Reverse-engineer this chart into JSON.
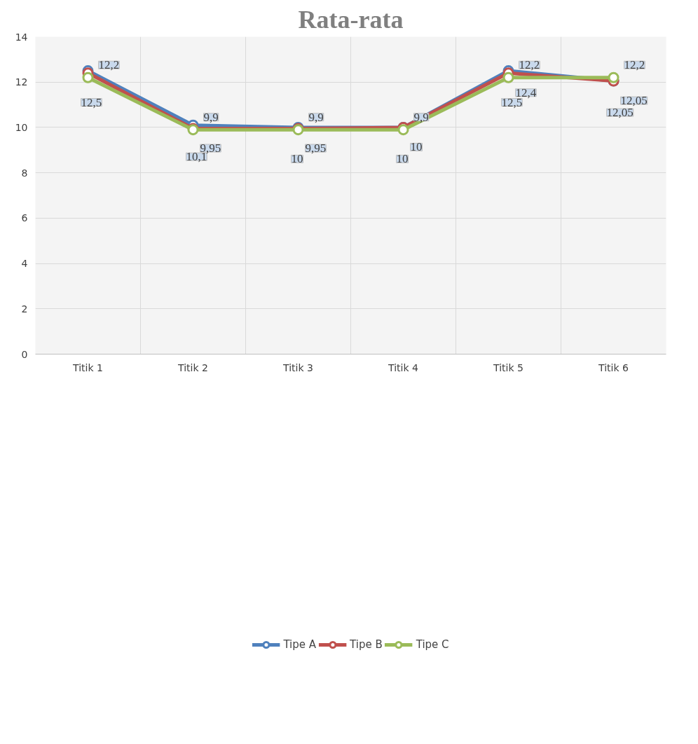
{
  "chart_data": {
    "type": "line",
    "title": "Rata-rata",
    "categories": [
      "Titik 1",
      "Titik 2",
      "Titik 3",
      "Titik 4",
      "Titik 5",
      "Titik 6"
    ],
    "series": [
      {
        "name": "Tipe A",
        "color": "#4f81bd",
        "values": [
          12.5,
          10.1,
          10,
          10,
          12.5,
          12.05
        ],
        "value_labels": [
          "12,5",
          "10,1",
          "10",
          "10",
          "12,5",
          "12,05"
        ]
      },
      {
        "name": "Tipe B",
        "color": "#c0504d",
        "values": [
          12.4,
          9.95,
          9.95,
          10,
          12.4,
          12.05
        ],
        "value_labels": [
          null,
          "9,95",
          "9,95",
          "10",
          "12,4",
          "12,05"
        ]
      },
      {
        "name": "Tipe C",
        "color": "#9bbb59",
        "values": [
          12.2,
          9.9,
          9.9,
          9.9,
          12.2,
          12.2
        ],
        "value_labels": [
          "12,2",
          "9,9",
          "9,9",
          "9,9",
          "12,2",
          "12,2"
        ]
      }
    ],
    "ylim": [
      0,
      14
    ],
    "yticks": [
      0,
      2,
      4,
      6,
      8,
      10,
      12,
      14
    ],
    "grid": true,
    "legend": "bottom",
    "marker": "circle",
    "line_style": "solid"
  }
}
